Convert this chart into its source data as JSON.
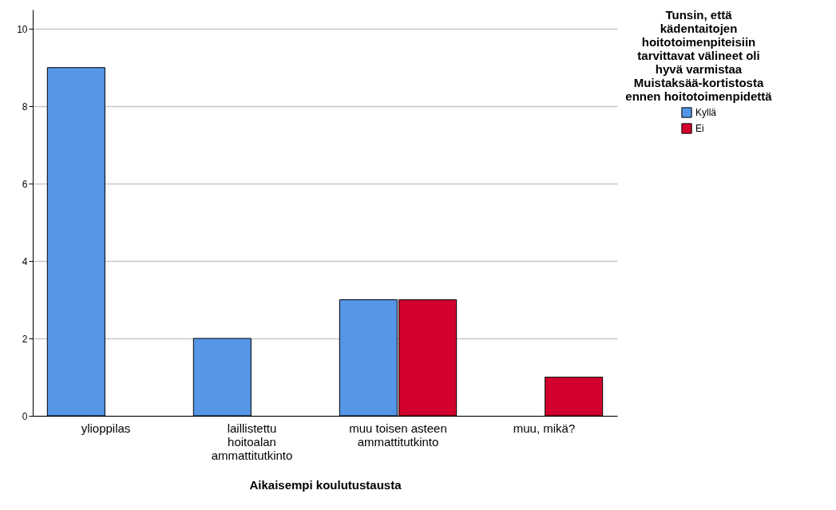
{
  "chart_data": {
    "type": "bar",
    "xlabel": "Aikaisempi koulutustausta",
    "legend_title": "Tunsin, että kädentaitojen hoitotoimenpiteisiin tarvittavat välineet oli hyvä varmistaa Muistaksää-kortistosta ennen hoitotoimenpidettä",
    "categories": [
      "ylioppilas",
      "laillistettu hoitoalan ammattitutkinto",
      "muu toisen asteen ammattitutkinto",
      "muu, mikä?"
    ],
    "series": [
      {
        "name": "Kyllä",
        "color": "#5596e6",
        "values": [
          9,
          2,
          3,
          null
        ]
      },
      {
        "name": "Ei",
        "color": "#d2002f",
        "values": [
          null,
          null,
          3,
          1
        ]
      }
    ],
    "ylim": [
      0,
      10.5
    ],
    "yticks": [
      0,
      2,
      4,
      6,
      8,
      10
    ],
    "grid": "y",
    "legend": "top right"
  }
}
